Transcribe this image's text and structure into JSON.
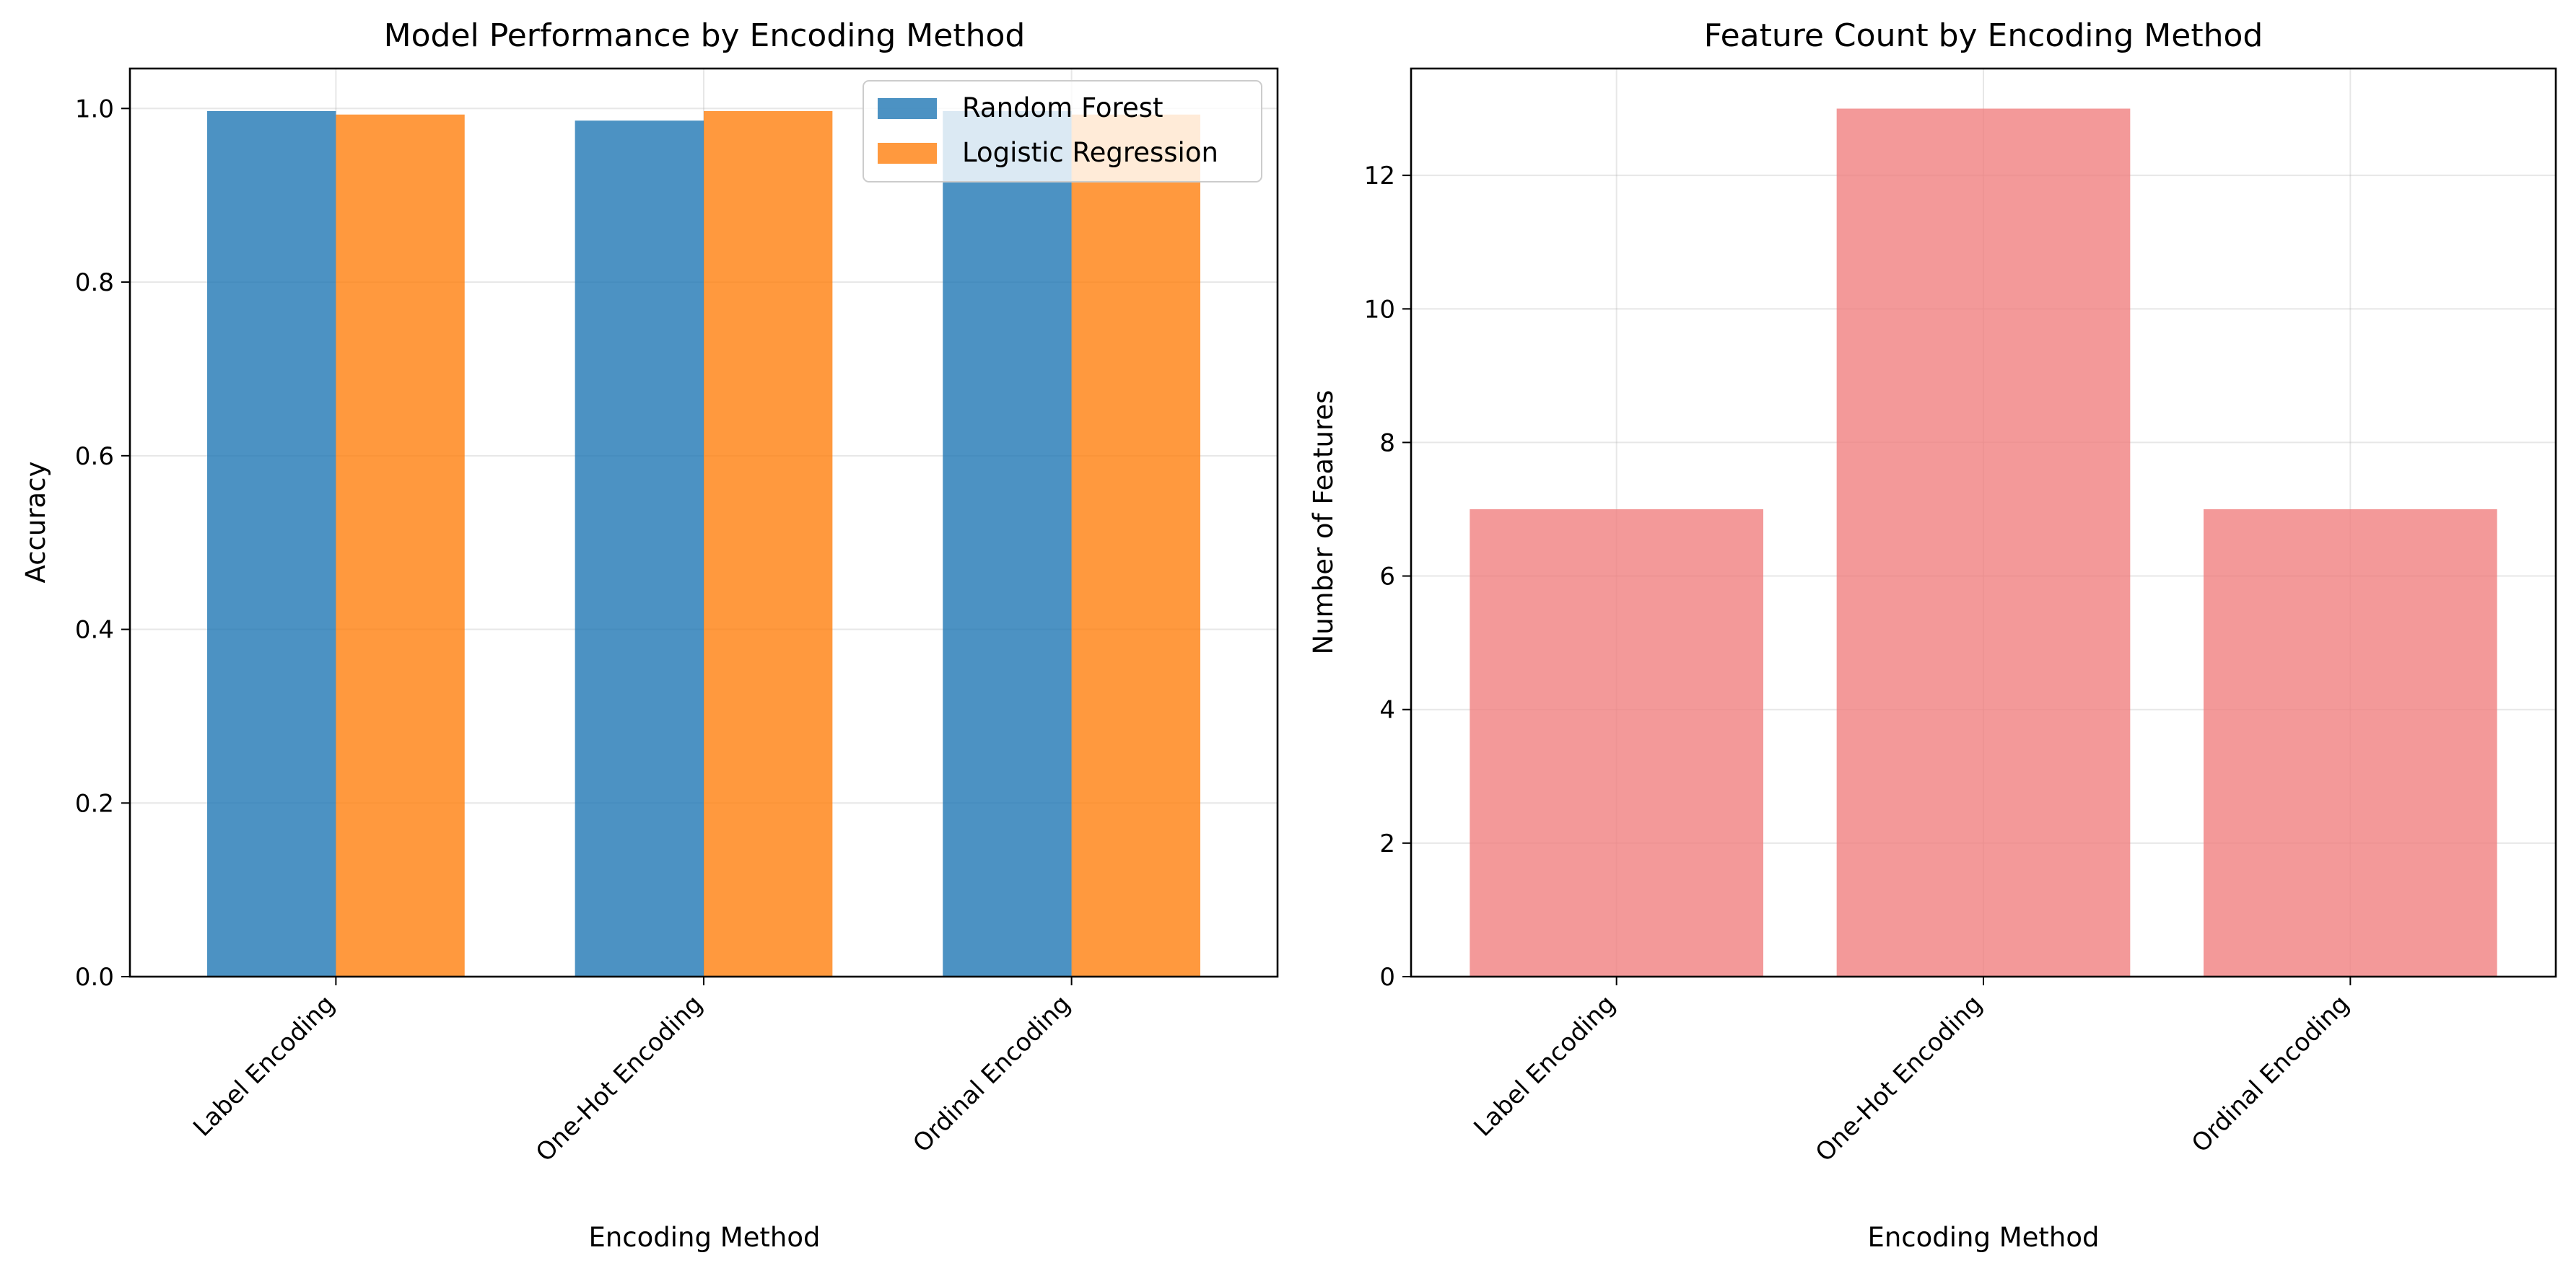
{
  "chart_data": [
    {
      "type": "bar",
      "title": "Model Performance by Encoding Method",
      "xlabel": "Encoding Method",
      "ylabel": "Accuracy",
      "categories": [
        "Label Encoding",
        "One-Hot Encoding",
        "Ordinal Encoding"
      ],
      "series": [
        {
          "name": "Random Forest",
          "values": [
            0.997,
            0.986,
            0.997
          ],
          "color": "#1f77b4"
        },
        {
          "name": "Logistic Regression",
          "values": [
            0.993,
            0.997,
            0.993
          ],
          "color": "#ff7f0e"
        }
      ],
      "ylim": [
        0,
        1.046
      ],
      "yticks": [
        0.0,
        0.2,
        0.4,
        0.6,
        0.8,
        1.0
      ],
      "ytick_labels": [
        "0.0",
        "0.2",
        "0.4",
        "0.6",
        "0.8",
        "1.0"
      ],
      "bar_opacity": 0.8,
      "grid": true,
      "legend": "top-right"
    },
    {
      "type": "bar",
      "title": "Feature Count by Encoding Method",
      "xlabel": "Encoding Method",
      "ylabel": "Number of Features",
      "categories": [
        "Label Encoding",
        "One-Hot Encoding",
        "Ordinal Encoding"
      ],
      "values": [
        7,
        13,
        7
      ],
      "color": "#f08080",
      "ylim": [
        0,
        13.6
      ],
      "yticks": [
        0,
        2,
        4,
        6,
        8,
        10,
        12
      ],
      "ytick_labels": [
        "0",
        "2",
        "4",
        "6",
        "8",
        "10",
        "12"
      ],
      "bar_opacity": 0.8,
      "grid": true
    }
  ]
}
